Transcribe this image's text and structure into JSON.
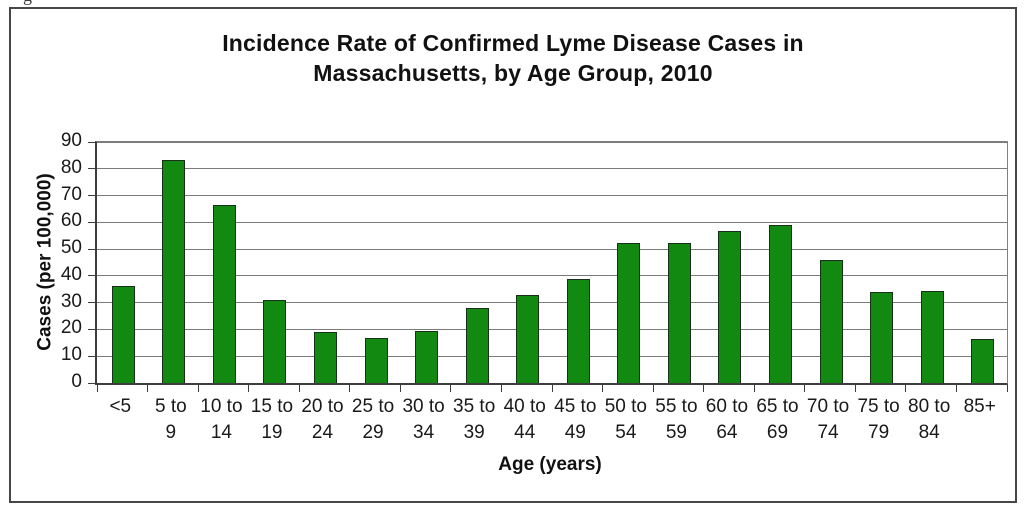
{
  "page": {
    "clipped_caption_fragment": "g"
  },
  "chart_data": {
    "type": "bar",
    "title": "Incidence Rate of Confirmed Lyme Disease Cases in Massachusetts, by Age Group, 2010",
    "title_lines": [
      "Incidence Rate of Confirmed Lyme Disease Cases in",
      "Massachusetts, by Age Group, 2010"
    ],
    "xlabel": "Age (years)",
    "ylabel": "Cases (per 100,000)",
    "ylim": [
      0,
      90
    ],
    "ytick_step": 10,
    "ytick_labels": [
      "0",
      "10",
      "20",
      "30",
      "40",
      "50",
      "60",
      "70",
      "80",
      "90"
    ],
    "grid": true,
    "legend": false,
    "categories": [
      "<5",
      "5 to 9",
      "10 to 14",
      "15 to 19",
      "20 to 24",
      "25 to 29",
      "30 to 34",
      "35 to 39",
      "40 to 44",
      "45 to 49",
      "50 to 54",
      "55 to 59",
      "60 to 64",
      "65 to 69",
      "70 to 74",
      "75 to 79",
      "80 to 84",
      "85+"
    ],
    "category_label_lines": [
      [
        "<5"
      ],
      [
        "5 to",
        "9"
      ],
      [
        "10 to",
        "14"
      ],
      [
        "15 to",
        "19"
      ],
      [
        "20 to",
        "24"
      ],
      [
        "25 to",
        "29"
      ],
      [
        "30 to",
        "34"
      ],
      [
        "35 to",
        "39"
      ],
      [
        "40 to",
        "44"
      ],
      [
        "45 to",
        "49"
      ],
      [
        "50 to",
        "54"
      ],
      [
        "55 to",
        "59"
      ],
      [
        "60 to",
        "64"
      ],
      [
        "65 to",
        "69"
      ],
      [
        "70 to",
        "74"
      ],
      [
        "75 to",
        "79"
      ],
      [
        "80 to",
        "84"
      ],
      [
        "85+"
      ]
    ],
    "values": [
      36,
      83,
      66,
      30.5,
      18.5,
      16.5,
      19,
      27.5,
      32.5,
      38.5,
      52,
      52,
      56.5,
      58.5,
      45.5,
      33.5,
      34,
      16
    ],
    "colors": {
      "bar_fill": "#128a12",
      "bar_border": "#17301a",
      "gridline": "#7a7a7a",
      "axis": "#3d3d3d",
      "figure_border": "#474747",
      "text": "#1a1a1a",
      "background": "#ffffff"
    }
  }
}
